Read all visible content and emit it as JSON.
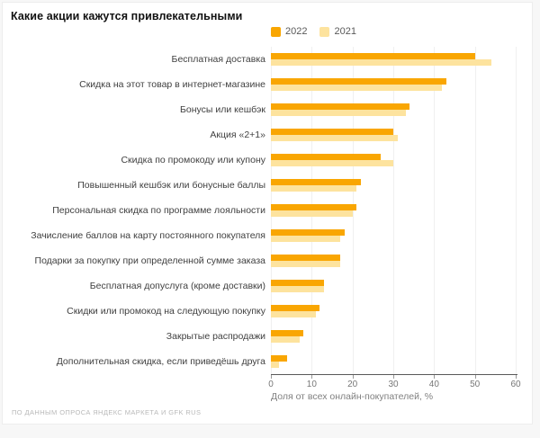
{
  "title": "Какие акции кажутся привлекательными",
  "source": "ПО ДАННЫМ ОПРОСА ЯНДЕКС МАРКЕТА И GFK RUS",
  "colors": {
    "series_2022": "#f9a602",
    "series_2021": "#fde39e",
    "gridline": "#f0f0f0",
    "axis_line": "#595959",
    "background": "#ffffff",
    "page_background": "#f7f7f7"
  },
  "chart_data": {
    "type": "bar",
    "orientation": "horizontal",
    "title": "Какие акции кажутся привлекательными",
    "categories": [
      "Бесплатная доставка",
      "Скидка на этот товар в интернет-магазине",
      "Бонусы или кешбэк",
      "Акция «2+1»",
      "Скидка по промокоду или купону",
      "Повышенный кешбэк или бонусные баллы",
      "Персональная скидка по программе лояльности",
      "Зачисление баллов на карту постоянного покупателя",
      "Подарки за покупку при определенной сумме заказа",
      "Бесплатная допуслуга (кроме доставки)",
      "Скидки или промокод на следующую покупку",
      "Закрытые распродажи",
      "Дополнительная скидка, если приведёшь друга"
    ],
    "series": [
      {
        "name": "2022",
        "color": "#f9a602",
        "values": [
          50,
          43,
          34,
          30,
          27,
          22,
          21,
          18,
          17,
          13,
          12,
          8,
          4
        ]
      },
      {
        "name": "2021",
        "color": "#fde39e",
        "values": [
          54,
          42,
          33,
          31,
          30,
          21,
          20,
          17,
          17,
          13,
          11,
          7,
          2
        ]
      }
    ],
    "xlabel": "Доля от всех онлайн-покупателей, %",
    "xlim": [
      0,
      60
    ],
    "xticks": [
      0,
      10,
      20,
      30,
      40,
      50,
      60
    ],
    "grid": "vertical",
    "legend_position": "top-right"
  }
}
